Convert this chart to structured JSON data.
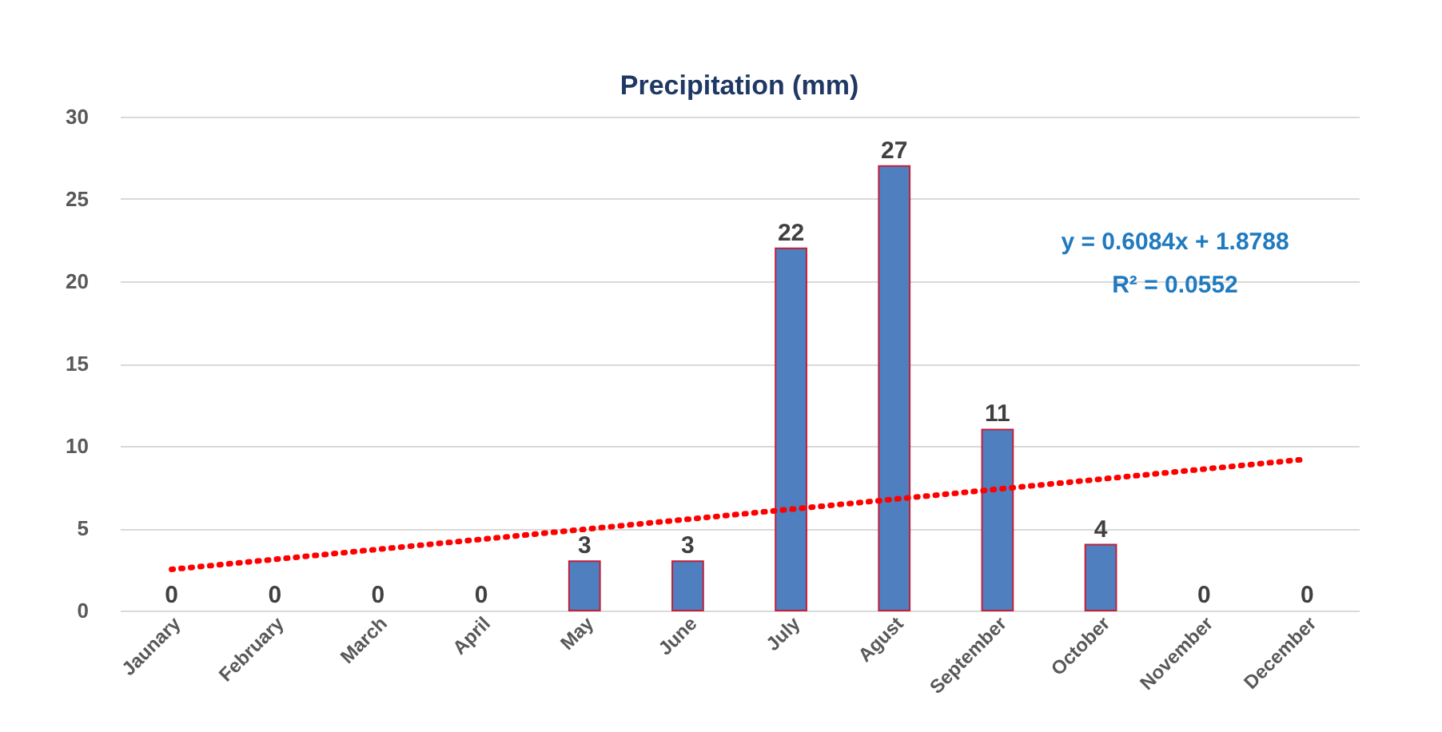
{
  "chart_data": {
    "type": "bar",
    "title": "Precipitation (mm)",
    "categories": [
      "Jaunary",
      "February",
      "March",
      "April",
      "May",
      "June",
      "July",
      "Agust",
      "September",
      "October",
      "November",
      "December"
    ],
    "series": [
      {
        "color": "#4f7fbf",
        "values": [
          0,
          0,
          0,
          0,
          3,
          3,
          22,
          27,
          11,
          4,
          0,
          0
        ],
        "value_labels": [
          "0",
          "0",
          "0",
          "0",
          "3",
          "3",
          "22",
          "27",
          "11",
          "4",
          "0",
          "0"
        ]
      },
      {
        "type": "line",
        "color": "#ff0000",
        "line_style": "dotted",
        "x": [
          "Jaunary",
          "December"
        ],
        "values": [
          2.5,
          9.2
        ]
      }
    ],
    "ylim": [
      0,
      30
    ],
    "yticks": [
      0,
      5,
      10,
      15,
      20,
      25,
      30
    ],
    "grid": "y",
    "annotations": [
      "y = 0.6084x + 1.8788",
      "R² = 0.0552"
    ]
  }
}
